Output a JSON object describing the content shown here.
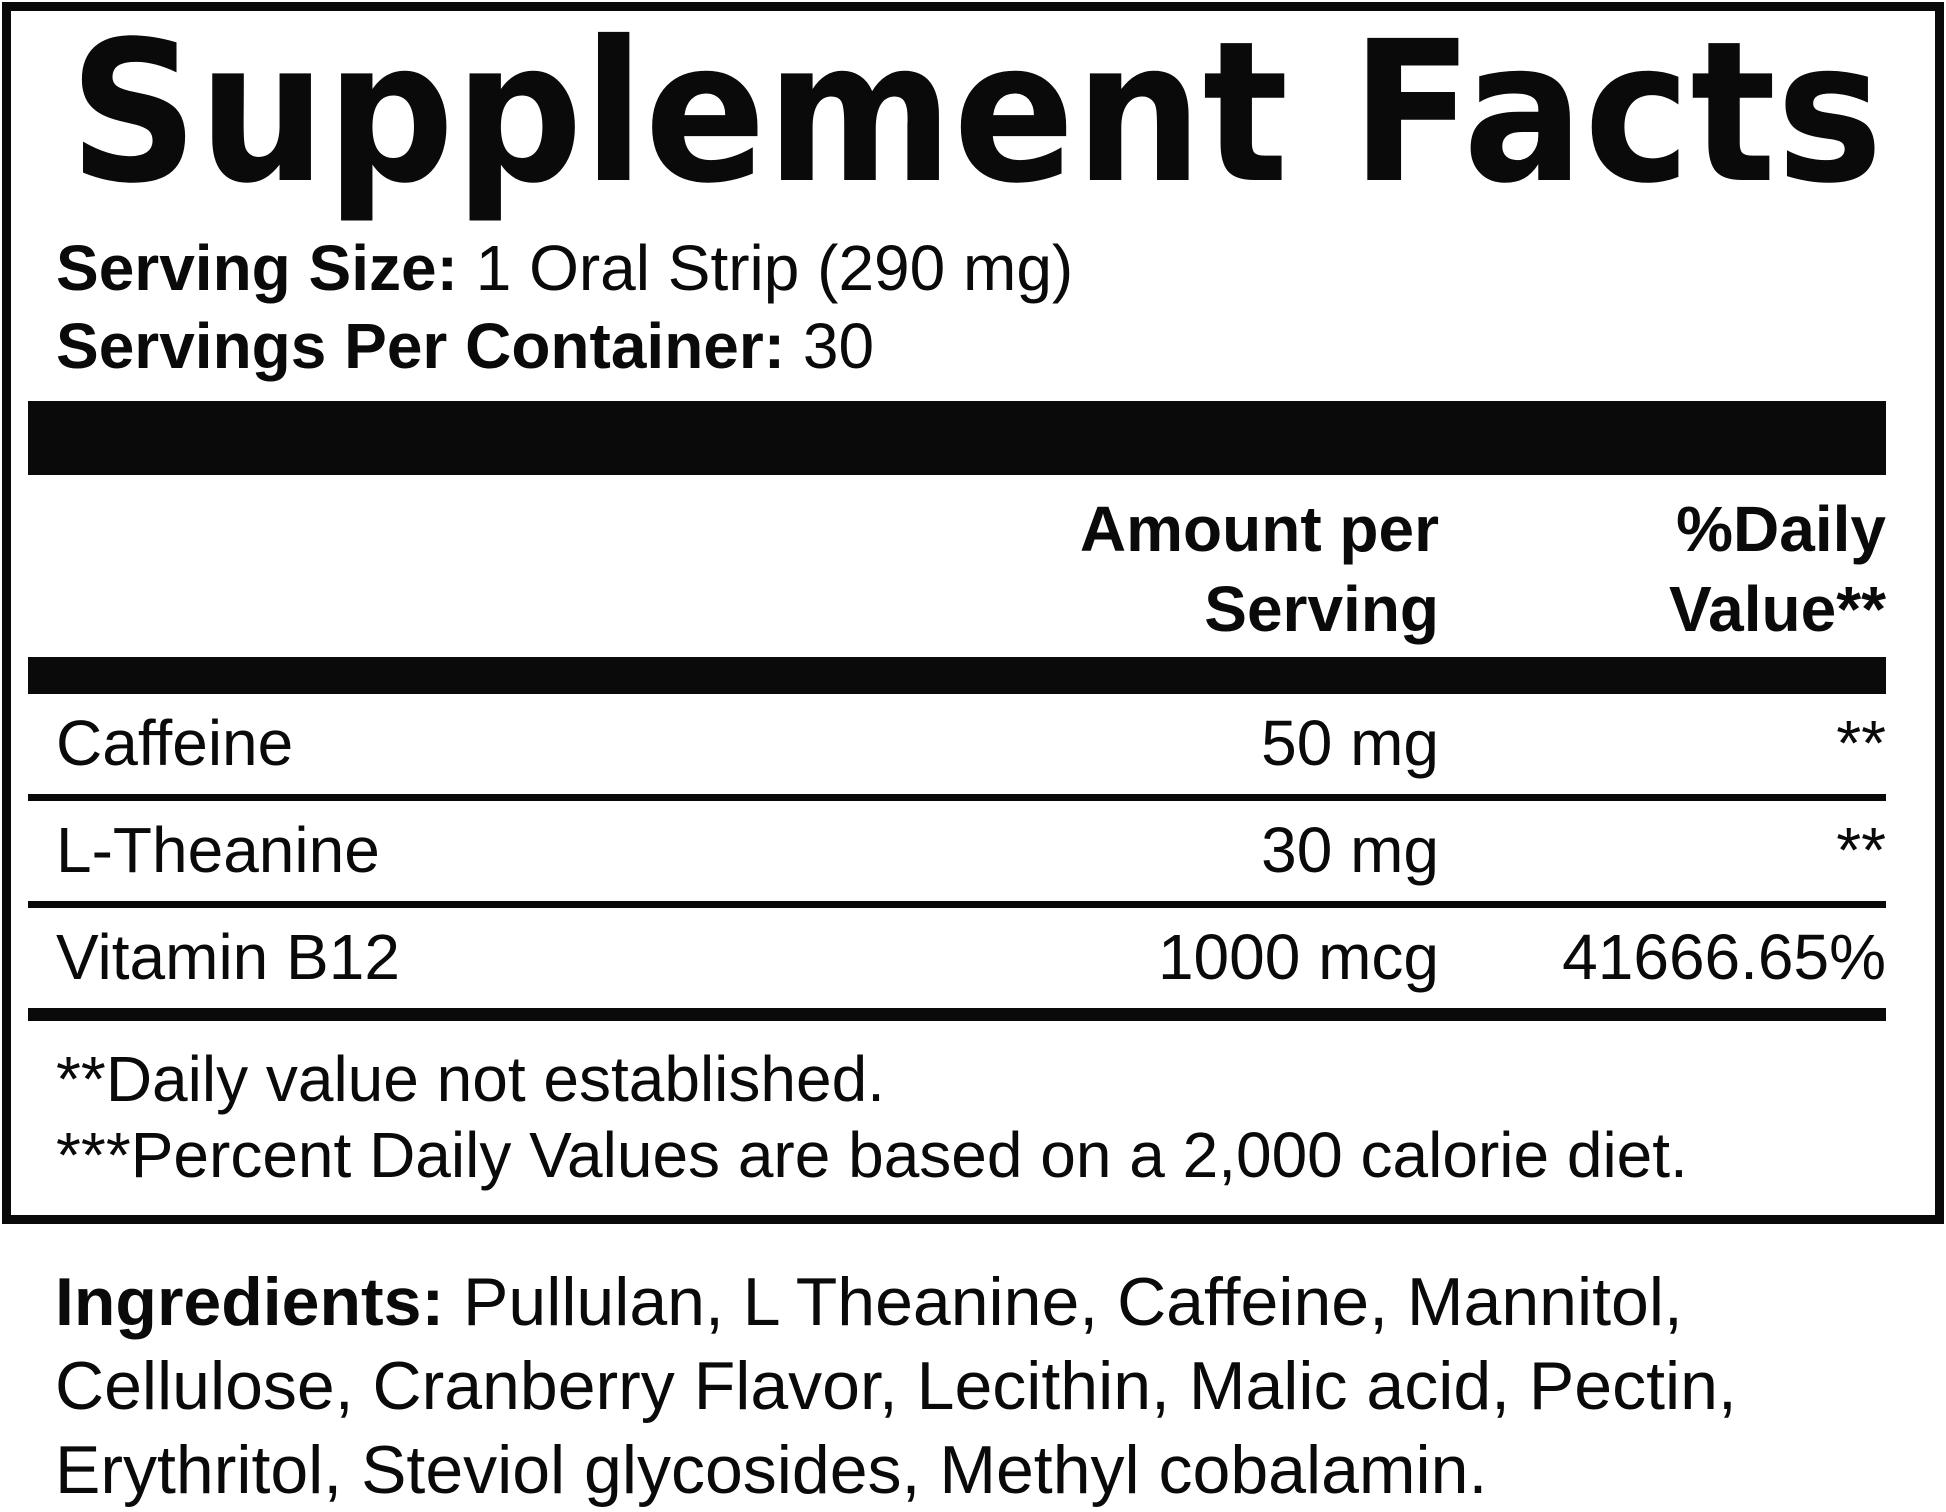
{
  "panel": {
    "title": "Supplement Facts",
    "serving_size_label": "Serving Size:",
    "serving_size_value": " 1 Oral Strip (290 mg)",
    "servings_per_container_label": "Servings Per Container:",
    "servings_per_container_value": " 30"
  },
  "table": {
    "amount_header": {
      "line1": "Amount per",
      "line2": "Serving"
    },
    "daily_value_header": {
      "line1": "%Daily",
      "line2": "Value**"
    },
    "rows": [
      {
        "name": "Caffeine",
        "amount": "50 mg",
        "daily_value": "**"
      },
      {
        "name": "L-Theanine",
        "amount": "30 mg",
        "daily_value": "**"
      },
      {
        "name": "Vitamin B12",
        "amount": "1000 mcg",
        "daily_value": "41666.65%"
      }
    ]
  },
  "footnotes": {
    "line1": "**Daily value not established.",
    "line2": "***Percent Daily Values are based on a 2,000 calorie diet."
  },
  "ingredients": {
    "label": "Ingredients:",
    "line1_rest": " Pullulan, L Theanine, Caffeine, Mannitol,",
    "line2": "Cellulose, Cranberry Flavor, Lecithin, Malic acid, Pectin,",
    "line3": "Erythritol, Steviol glycosides, Methyl cobalamin."
  },
  "colors": {
    "ink": "#0a0a0a",
    "background": "#ffffff"
  }
}
